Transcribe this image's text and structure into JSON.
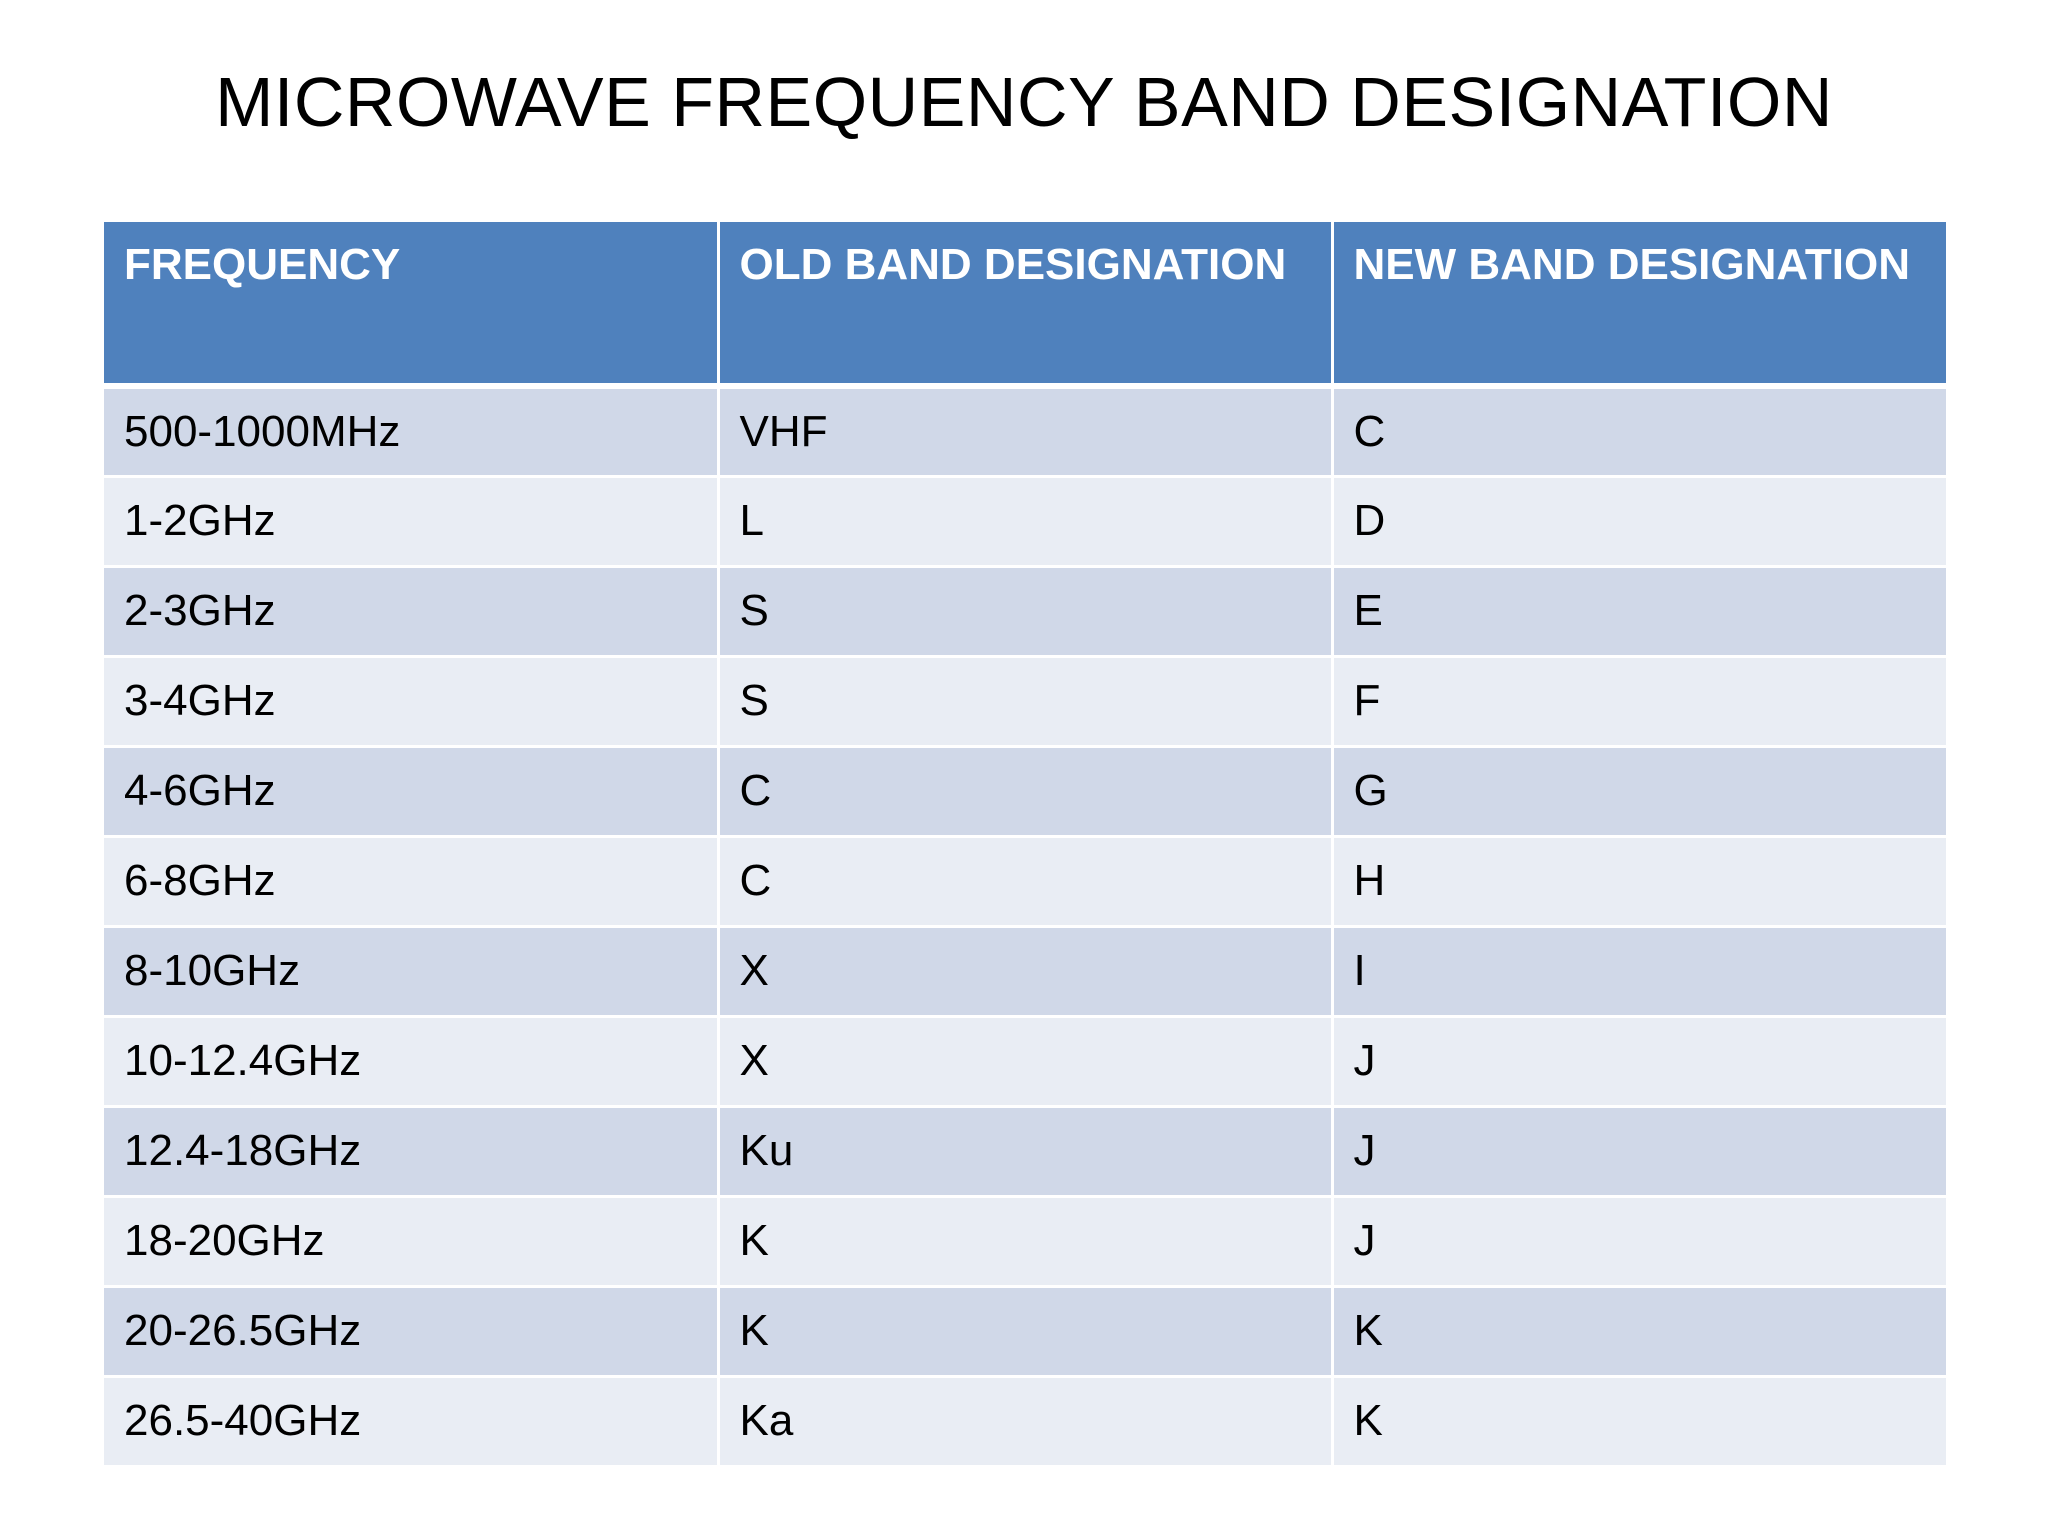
{
  "title": "MICROWAVE FREQUENCY BAND DESIGNATION",
  "colors": {
    "header_bg": "#4f81bd",
    "header_text": "#ffffff",
    "row_odd_bg": "#d0d8e8",
    "row_even_bg": "#e9edf4"
  },
  "table": {
    "headers": [
      "FREQUENCY",
      "OLD BAND DESIGNATION",
      "NEW BAND DESIGNATION"
    ],
    "rows": [
      [
        "500-1000MHz",
        "VHF",
        "C"
      ],
      [
        "1-2GHz",
        "L",
        "D"
      ],
      [
        "2-3GHz",
        "S",
        "E"
      ],
      [
        "3-4GHz",
        "S",
        "F"
      ],
      [
        "4-6GHz",
        "C",
        "G"
      ],
      [
        "6-8GHz",
        "C",
        "H"
      ],
      [
        "8-10GHz",
        "X",
        "I"
      ],
      [
        "10-12.4GHz",
        "X",
        "J"
      ],
      [
        "12.4-18GHz",
        "Ku",
        "J"
      ],
      [
        "18-20GHz",
        "K",
        "J"
      ],
      [
        "20-26.5GHz",
        "K",
        "K"
      ],
      [
        "26.5-40GHz",
        "Ka",
        "K"
      ]
    ]
  }
}
